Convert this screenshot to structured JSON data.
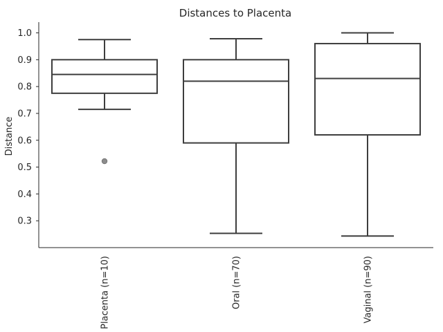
{
  "chart_data": {
    "type": "box",
    "title": "Distances to Placenta",
    "xlabel": "",
    "ylabel": "Distance",
    "ylim": [
      0.2,
      1.04
    ],
    "yticks": [
      0.3,
      0.4,
      0.5,
      0.6,
      0.7,
      0.8,
      0.9,
      1.0
    ],
    "ytick_labels": [
      "0.3",
      "0.4",
      "0.5",
      "0.6",
      "0.7",
      "0.8",
      "0.9",
      "1.0"
    ],
    "grid": false,
    "box_color": "#ffffff",
    "line_color": "#3d3d3d",
    "outlier_color": "#8c8c8c",
    "categories": [
      "Placenta (n=10)",
      "Oral (n=70)",
      "Vaginal (n=90)"
    ],
    "boxes": [
      {
        "category": "Placenta (n=10)",
        "whisker_low": 0.715,
        "q1": 0.775,
        "median": 0.845,
        "q3": 0.9,
        "whisker_high": 0.975,
        "outliers": [
          0.522
        ]
      },
      {
        "category": "Oral (n=70)",
        "whisker_low": 0.253,
        "q1": 0.59,
        "median": 0.82,
        "q3": 0.9,
        "whisker_high": 0.978,
        "outliers": []
      },
      {
        "category": "Vaginal (n=90)",
        "whisker_low": 0.243,
        "q1": 0.62,
        "median": 0.83,
        "q3": 0.96,
        "whisker_high": 1.0,
        "outliers": []
      }
    ]
  }
}
